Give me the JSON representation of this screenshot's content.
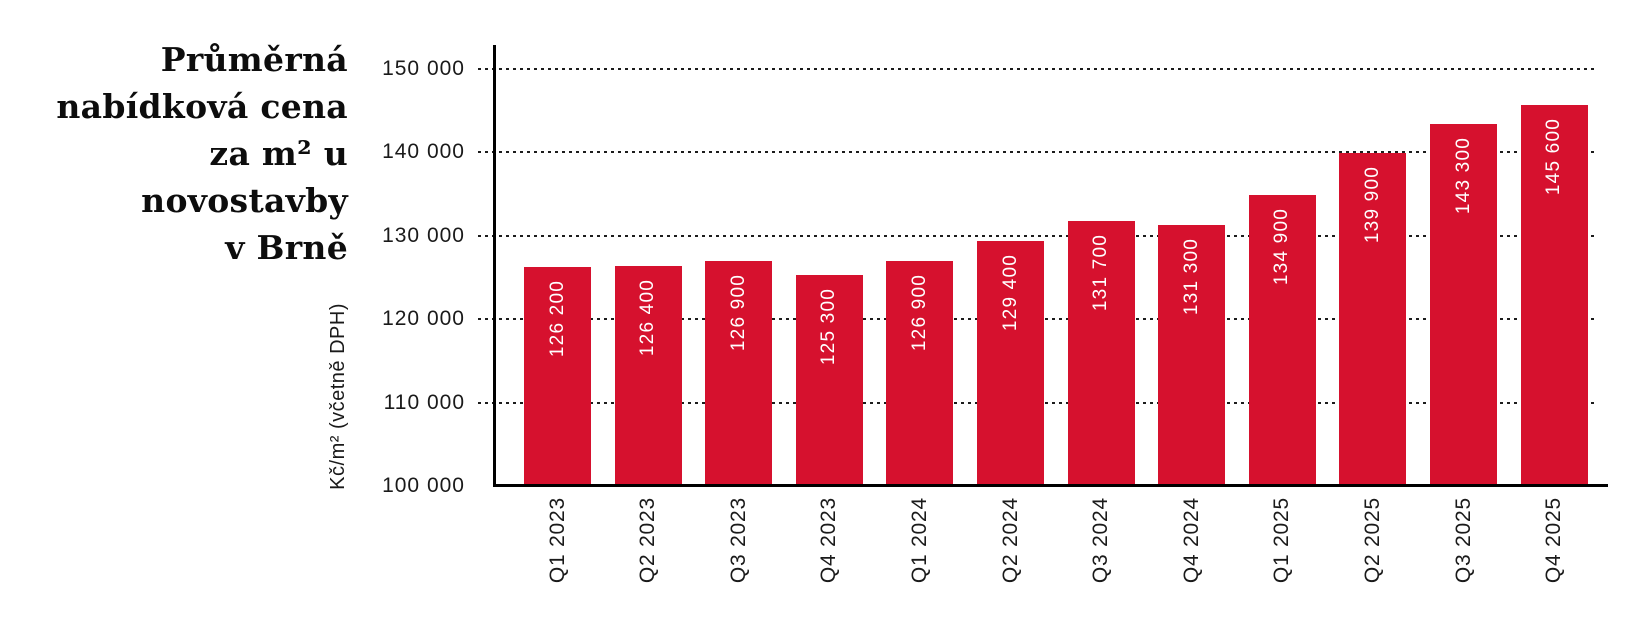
{
  "title": {
    "lines": [
      "Průměrná",
      "nabídková cena",
      "za m² u novostavby",
      "v Brně"
    ]
  },
  "chart_data": {
    "type": "bar",
    "title": "Průměrná nabídková cena za m² u novostavby v Brně",
    "ylabel": "Kč/m² (včetně DPH)",
    "xlabel": "",
    "categories": [
      "Q1 2023",
      "Q2 2023",
      "Q3 2023",
      "Q4 2023",
      "Q1 2024",
      "Q2 2024",
      "Q3 2024",
      "Q4 2024",
      "Q1 2025",
      "Q2 2025",
      "Q3 2025",
      "Q4 2025"
    ],
    "values": [
      126200,
      126400,
      126900,
      125300,
      126900,
      129400,
      131700,
      131300,
      134900,
      139900,
      143300,
      145600
    ],
    "bar_labels": [
      "126 200",
      "126 400",
      "126 900",
      "125 300",
      "126 900",
      "129 400",
      "131 700",
      "131 300",
      "134 900",
      "139 900",
      "143 300",
      "145 600"
    ],
    "yticks": [
      {
        "value": 100000,
        "label": "100 000"
      },
      {
        "value": 110000,
        "label": "110 000"
      },
      {
        "value": 120000,
        "label": "120 000"
      },
      {
        "value": 130000,
        "label": "130 000"
      },
      {
        "value": 140000,
        "label": "140 000"
      },
      {
        "value": 150000,
        "label": "150 000"
      }
    ],
    "ylim": [
      100000,
      150000
    ],
    "grid": "horizontal dotted",
    "legend": "none",
    "bar_color": "#d6112e",
    "bar_label_color": "#ffffff",
    "axis_color": "#000000"
  }
}
